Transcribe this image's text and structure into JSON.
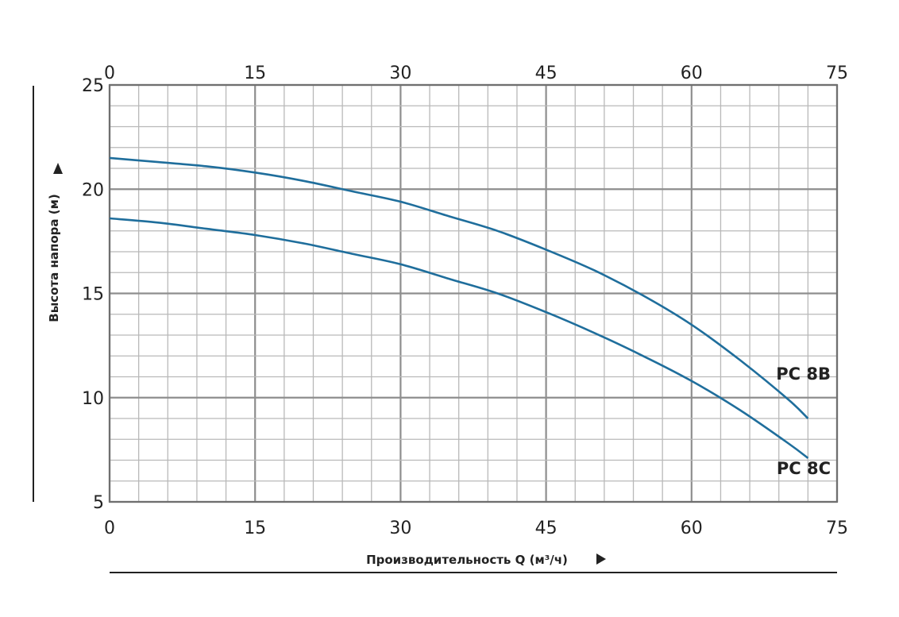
{
  "chart_data": {
    "type": "line",
    "xlabel": "Производительность Q (м³/ч)",
    "ylabel": "Высота напора (м)",
    "xlim": [
      0,
      75
    ],
    "ylim": [
      5,
      25
    ],
    "x_ticks": [
      "0",
      "15",
      "30",
      "45",
      "60",
      "75"
    ],
    "x_ticks_top": [
      "0",
      "15",
      "30",
      "45",
      "60",
      "75"
    ],
    "y_ticks": [
      "5",
      "10",
      "15",
      "20",
      "25"
    ],
    "grid": true,
    "series": [
      {
        "name": "PC 8B",
        "color": "#1f6e9c",
        "x": [
          0,
          5,
          10,
          15,
          20,
          25,
          30,
          35,
          40,
          45,
          50,
          55,
          60,
          65,
          70,
          72
        ],
        "y": [
          21.5,
          21.3,
          21.1,
          20.8,
          20.4,
          19.9,
          19.4,
          18.7,
          18.0,
          17.1,
          16.1,
          14.9,
          13.5,
          11.8,
          9.9,
          9.0
        ]
      },
      {
        "name": "PC 8C",
        "color": "#1f6e9c",
        "x": [
          0,
          5,
          10,
          15,
          20,
          25,
          30,
          35,
          40,
          45,
          50,
          55,
          60,
          65,
          70,
          72
        ],
        "y": [
          18.6,
          18.4,
          18.1,
          17.8,
          17.4,
          16.9,
          16.4,
          15.7,
          15.0,
          14.1,
          13.1,
          12.0,
          10.8,
          9.4,
          7.8,
          7.1
        ]
      }
    ]
  }
}
